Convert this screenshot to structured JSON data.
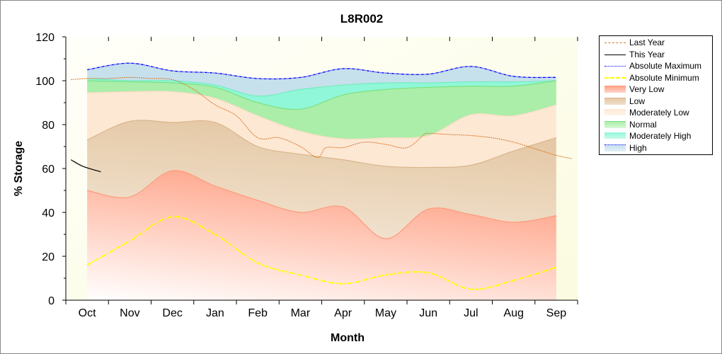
{
  "chart_data": {
    "type": "area",
    "title": "L8R002",
    "xlabel": "Month",
    "ylabel": "% Storage",
    "categories": [
      "Oct",
      "Nov",
      "Dec",
      "Jan",
      "Feb",
      "Mar",
      "Apr",
      "May",
      "Jun",
      "Jul",
      "Aug",
      "Sep"
    ],
    "xlim": [
      -0.5,
      11.5
    ],
    "ylim": [
      0,
      120
    ],
    "yticks": [
      0,
      20,
      40,
      60,
      80,
      100,
      120
    ],
    "legend_position": "right",
    "boundaries": {
      "absolute_maximum": [
        105,
        108,
        104.5,
        103.5,
        101,
        101.5,
        105.5,
        103.5,
        103,
        106.5,
        102,
        101.5
      ],
      "moderately_high_top": [
        101,
        100,
        100,
        98,
        93,
        96,
        98,
        99,
        99,
        99.5,
        99.5,
        100
      ],
      "normal_top": [
        100,
        99.5,
        99,
        97,
        90,
        87,
        93.5,
        96,
        97,
        97.5,
        97.5,
        100
      ],
      "moderately_low_top": [
        94.5,
        95,
        95,
        92,
        84,
        77,
        73.5,
        74,
        75,
        84.5,
        84,
        89
      ],
      "low_top": [
        73,
        81.5,
        81,
        81,
        70,
        66.5,
        64,
        61,
        60.5,
        61.5,
        68,
        74
      ],
      "very_low_top": [
        50,
        47,
        59,
        52,
        45.5,
        40,
        42.5,
        28,
        41.5,
        39,
        35.5,
        38.5
      ],
      "absolute_minimum": [
        16,
        27,
        38,
        30,
        17,
        11.5,
        7.5,
        11.5,
        12.5,
        5,
        9,
        15
      ]
    },
    "last_year": {
      "x": [
        -0.38,
        0,
        0.5,
        1,
        1.5,
        2,
        2.5,
        3,
        3.5,
        4,
        4.5,
        5,
        5.4,
        5.6,
        6,
        6.5,
        7,
        7.5,
        7.9,
        8,
        8.5,
        9,
        9.5,
        10,
        10.5,
        11,
        11.36
      ],
      "y": [
        100.5,
        101,
        101,
        101.5,
        101,
        100.5,
        96,
        89,
        84,
        74,
        74,
        70,
        65,
        69.5,
        69.5,
        72,
        71,
        69.5,
        75.5,
        76,
        75.5,
        75,
        74,
        72,
        69,
        66,
        64.5
      ]
    },
    "this_year": {
      "x": [
        -0.38,
        -0.1,
        0.32
      ],
      "y": [
        64,
        61,
        58.5
      ]
    },
    "legend": [
      "Last Year",
      "This Year",
      "Absolute Maximum",
      "Absolute Minimum",
      "Very Low",
      "Low",
      "Moderately Low",
      "Normal",
      "Moderately High",
      "High"
    ],
    "colors": {
      "last_year": "#d2782a",
      "this_year": "#000000",
      "abs_max": "#0000ff",
      "abs_min": "#ffff00",
      "very_low": "#ffa58a",
      "low": "#e5c9a6",
      "moderately_low": "#fde8d4",
      "normal": "#aaeeaa",
      "moderately_high": "#90f7d8",
      "high": "#c6e0ec"
    }
  }
}
